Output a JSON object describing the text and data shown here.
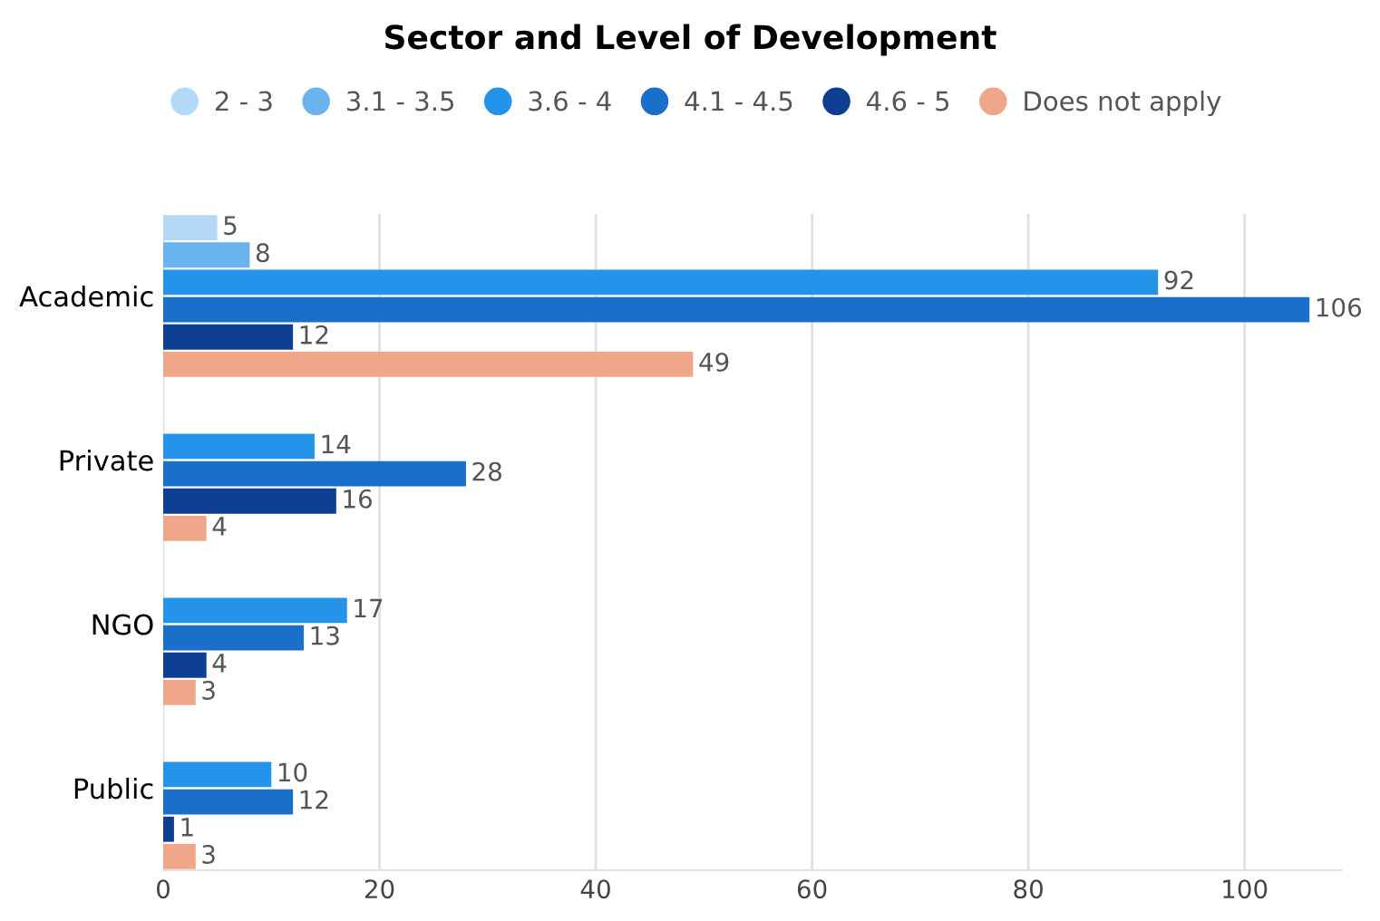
{
  "chart_data": {
    "type": "bar",
    "orientation": "horizontal",
    "title": "Sector and Level of Development",
    "categories": [
      "Academic",
      "Private",
      "NGO",
      "Public"
    ],
    "series": [
      {
        "name": "2 - 3",
        "color": "#b5d8f6",
        "values": [
          5,
          null,
          null,
          null
        ]
      },
      {
        "name": "3.1 - 3.5",
        "color": "#6ab3ee",
        "values": [
          8,
          null,
          null,
          null
        ]
      },
      {
        "name": "3.6 - 4",
        "color": "#2494ea",
        "values": [
          92,
          14,
          17,
          10
        ]
      },
      {
        "name": "4.1 - 4.5",
        "color": "#1a6fcb",
        "values": [
          106,
          28,
          13,
          12
        ]
      },
      {
        "name": "4.6 - 5",
        "color": "#0f3f93",
        "values": [
          12,
          16,
          4,
          1
        ]
      },
      {
        "name": "Does not apply",
        "color": "#f0a688",
        "values": [
          49,
          4,
          3,
          3
        ]
      }
    ],
    "xlim": [
      0,
      109
    ],
    "xticks": [
      0,
      20,
      40,
      60,
      80,
      100
    ],
    "grid": "x",
    "legend": "top",
    "marker": "circle",
    "data_labels": true
  }
}
